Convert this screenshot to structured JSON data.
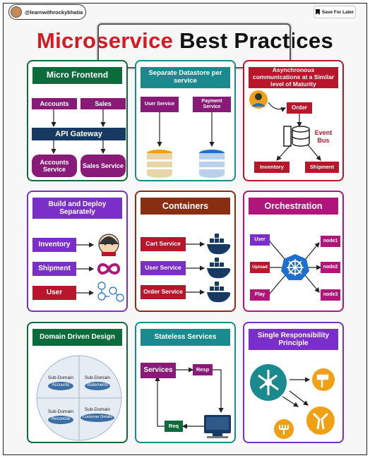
{
  "header": {
    "handle": "@learnwithrockybhatia",
    "save_label": "Save For Later"
  },
  "title": {
    "part1": "Microservice",
    "part2": "Best Practices"
  },
  "cards": {
    "micro_frontend": {
      "title": "Micro Frontend",
      "accounts": "Accounts",
      "sales": "Sales",
      "gateway": "API Gateway",
      "accounts_service": "Accounts Service",
      "sales_service": "Sales Service"
    },
    "separate_datastore": {
      "title": "Separate Datastore per service",
      "user_service": "User Service",
      "payment_service": "Payment Service"
    },
    "async": {
      "title": "Asynchronous communications at a Similar level of Maturity",
      "order": "Order",
      "event_bus": "Event Bus",
      "inventory": "Inventory",
      "shipment": "Shipment"
    },
    "build_deploy": {
      "title": "Build and Deploy Separately",
      "inventory": "Inventory",
      "shipment": "Shipment",
      "user": "User"
    },
    "containers": {
      "title": "Containers",
      "cart": "Cart Service",
      "user": "User Service",
      "order": "Order Service"
    },
    "orchestration": {
      "title": "Orchestration",
      "user": "User",
      "upload": "Upload",
      "play": "Play",
      "node1": "node1",
      "node2": "node2",
      "node3": "node3"
    },
    "ddd": {
      "title": "Domain Driven Design",
      "sd1": "Sub-Domain",
      "sd1_item": "Accounts",
      "sd2": "Sub-Domain",
      "sd2_item": "Statements",
      "sd3": "Sub-Domain",
      "sd3_item": "Reconcile",
      "sd4": "Sub-Domain",
      "sd4_item": "Customer Details"
    },
    "stateless": {
      "title": "Stateless Services",
      "services": "Services",
      "resp": "Resp",
      "req": "Req"
    },
    "srp": {
      "title": "Single Responsibility Principle"
    }
  },
  "colors": {
    "red": "#d71921",
    "green": "#0b6b3a",
    "teal": "#1a8a8f",
    "crimson": "#b8162b",
    "purple": "#7b2fc9",
    "brown": "#8a2e12",
    "magenta": "#b0167a",
    "pink": "#a31268",
    "navy": "#173a63",
    "orange": "#f0a015",
    "blue": "#1e6fd0"
  }
}
